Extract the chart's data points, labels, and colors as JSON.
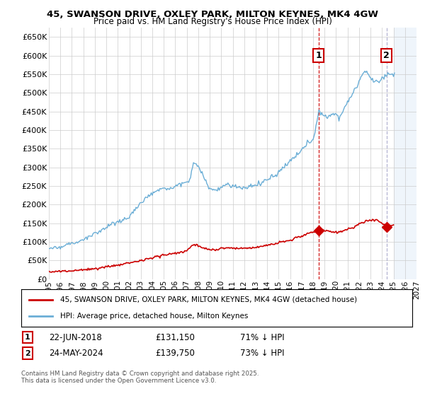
{
  "title": "45, SWANSON DRIVE, OXLEY PARK, MILTON KEYNES, MK4 4GW",
  "subtitle": "Price paid vs. HM Land Registry's House Price Index (HPI)",
  "hpi_color": "#6baed6",
  "price_color": "#cc0000",
  "background_color": "#ffffff",
  "grid_color": "#cccccc",
  "ylim": [
    0,
    675000
  ],
  "yticks": [
    0,
    50000,
    100000,
    150000,
    200000,
    250000,
    300000,
    350000,
    400000,
    450000,
    500000,
    550000,
    600000,
    650000
  ],
  "xlim_start": 1995.0,
  "xlim_end": 2027.0,
  "sale1_x": 2018.47,
  "sale1_y": 131150,
  "sale2_x": 2024.39,
  "sale2_y": 139750,
  "legend_line1": "45, SWANSON DRIVE, OXLEY PARK, MILTON KEYNES, MK4 4GW (detached house)",
  "legend_line2": "HPI: Average price, detached house, Milton Keynes",
  "annotation1_date": "22-JUN-2018",
  "annotation1_price": "£131,150",
  "annotation1_pct": "71% ↓ HPI",
  "annotation2_date": "24-MAY-2024",
  "annotation2_price": "£139,750",
  "annotation2_pct": "73% ↓ HPI",
  "footer": "Contains HM Land Registry data © Crown copyright and database right 2025.\nThis data is licensed under the Open Government Licence v3.0.",
  "future_start": 2025.0
}
